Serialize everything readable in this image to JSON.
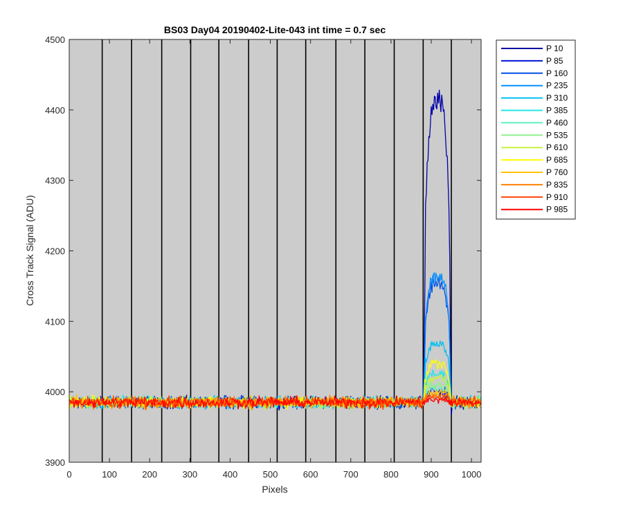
{
  "chart_data": {
    "type": "line",
    "title": "BS03 Day04 20190402-Lite-043 int time = 0.7 sec",
    "xlabel": "Pixels",
    "ylabel": "Cross Track Signal (ADU)",
    "xlim": [
      0,
      1024
    ],
    "ylim": [
      3900,
      4500
    ],
    "xticks": [
      0,
      100,
      200,
      300,
      400,
      500,
      600,
      700,
      800,
      900,
      1000
    ],
    "yticks": [
      3900,
      4000,
      4100,
      4200,
      4300,
      4400,
      4500
    ],
    "grid": false,
    "legend_position": "outside-top-right",
    "plot_background": "#cccccc",
    "column_boundaries": [
      82,
      155,
      230,
      302,
      372,
      446,
      517,
      588,
      663,
      735,
      808,
      880,
      950
    ],
    "series": [
      {
        "name": "P 10",
        "color": "#0000a6",
        "baseline": 3985,
        "noise": 12,
        "plateau": 4410,
        "plateau_noise": 30
      },
      {
        "name": "P 85",
        "color": "#0012d6",
        "baseline": 3985,
        "noise": 12,
        "plateau": 4000,
        "plateau_noise": 15
      },
      {
        "name": "P 160",
        "color": "#0050e6",
        "baseline": 3985,
        "noise": 12,
        "plateau": 4155,
        "plateau_noise": 18
      },
      {
        "name": "P 235",
        "color": "#0090ff",
        "baseline": 3985,
        "noise": 12,
        "plateau": 4165,
        "plateau_noise": 14
      },
      {
        "name": "P 310",
        "color": "#00c0f0",
        "baseline": 3985,
        "noise": 12,
        "plateau": 4068,
        "plateau_noise": 10
      },
      {
        "name": "P 385",
        "color": "#20e6e6",
        "baseline": 3985,
        "noise": 12,
        "plateau": 4025,
        "plateau_noise": 10
      },
      {
        "name": "P 460",
        "color": "#5cf0c0",
        "baseline": 3985,
        "noise": 12,
        "plateau": 4005,
        "plateau_noise": 8
      },
      {
        "name": "P 535",
        "color": "#90f090",
        "baseline": 3985,
        "noise": 12,
        "plateau": 4010,
        "plateau_noise": 8
      },
      {
        "name": "P 610",
        "color": "#c8f040",
        "baseline": 3985,
        "noise": 12,
        "plateau": 4020,
        "plateau_noise": 10
      },
      {
        "name": "P 685",
        "color": "#ffff00",
        "baseline": 3985,
        "noise": 12,
        "plateau": 4040,
        "plateau_noise": 12
      },
      {
        "name": "P 760",
        "color": "#ffc000",
        "baseline": 3985,
        "noise": 12,
        "plateau": 4000,
        "plateau_noise": 8
      },
      {
        "name": "P 835",
        "color": "#ff8000",
        "baseline": 3985,
        "noise": 12,
        "plateau": 3995,
        "plateau_noise": 8
      },
      {
        "name": "P 910",
        "color": "#ff4000",
        "baseline": 3985,
        "noise": 12,
        "plateau": 3992,
        "plateau_noise": 8
      },
      {
        "name": "P 985",
        "color": "#ff0000",
        "baseline": 3985,
        "noise": 12,
        "plateau": 3988,
        "plateau_noise": 8
      }
    ],
    "peak_region": [
      880,
      950
    ]
  }
}
